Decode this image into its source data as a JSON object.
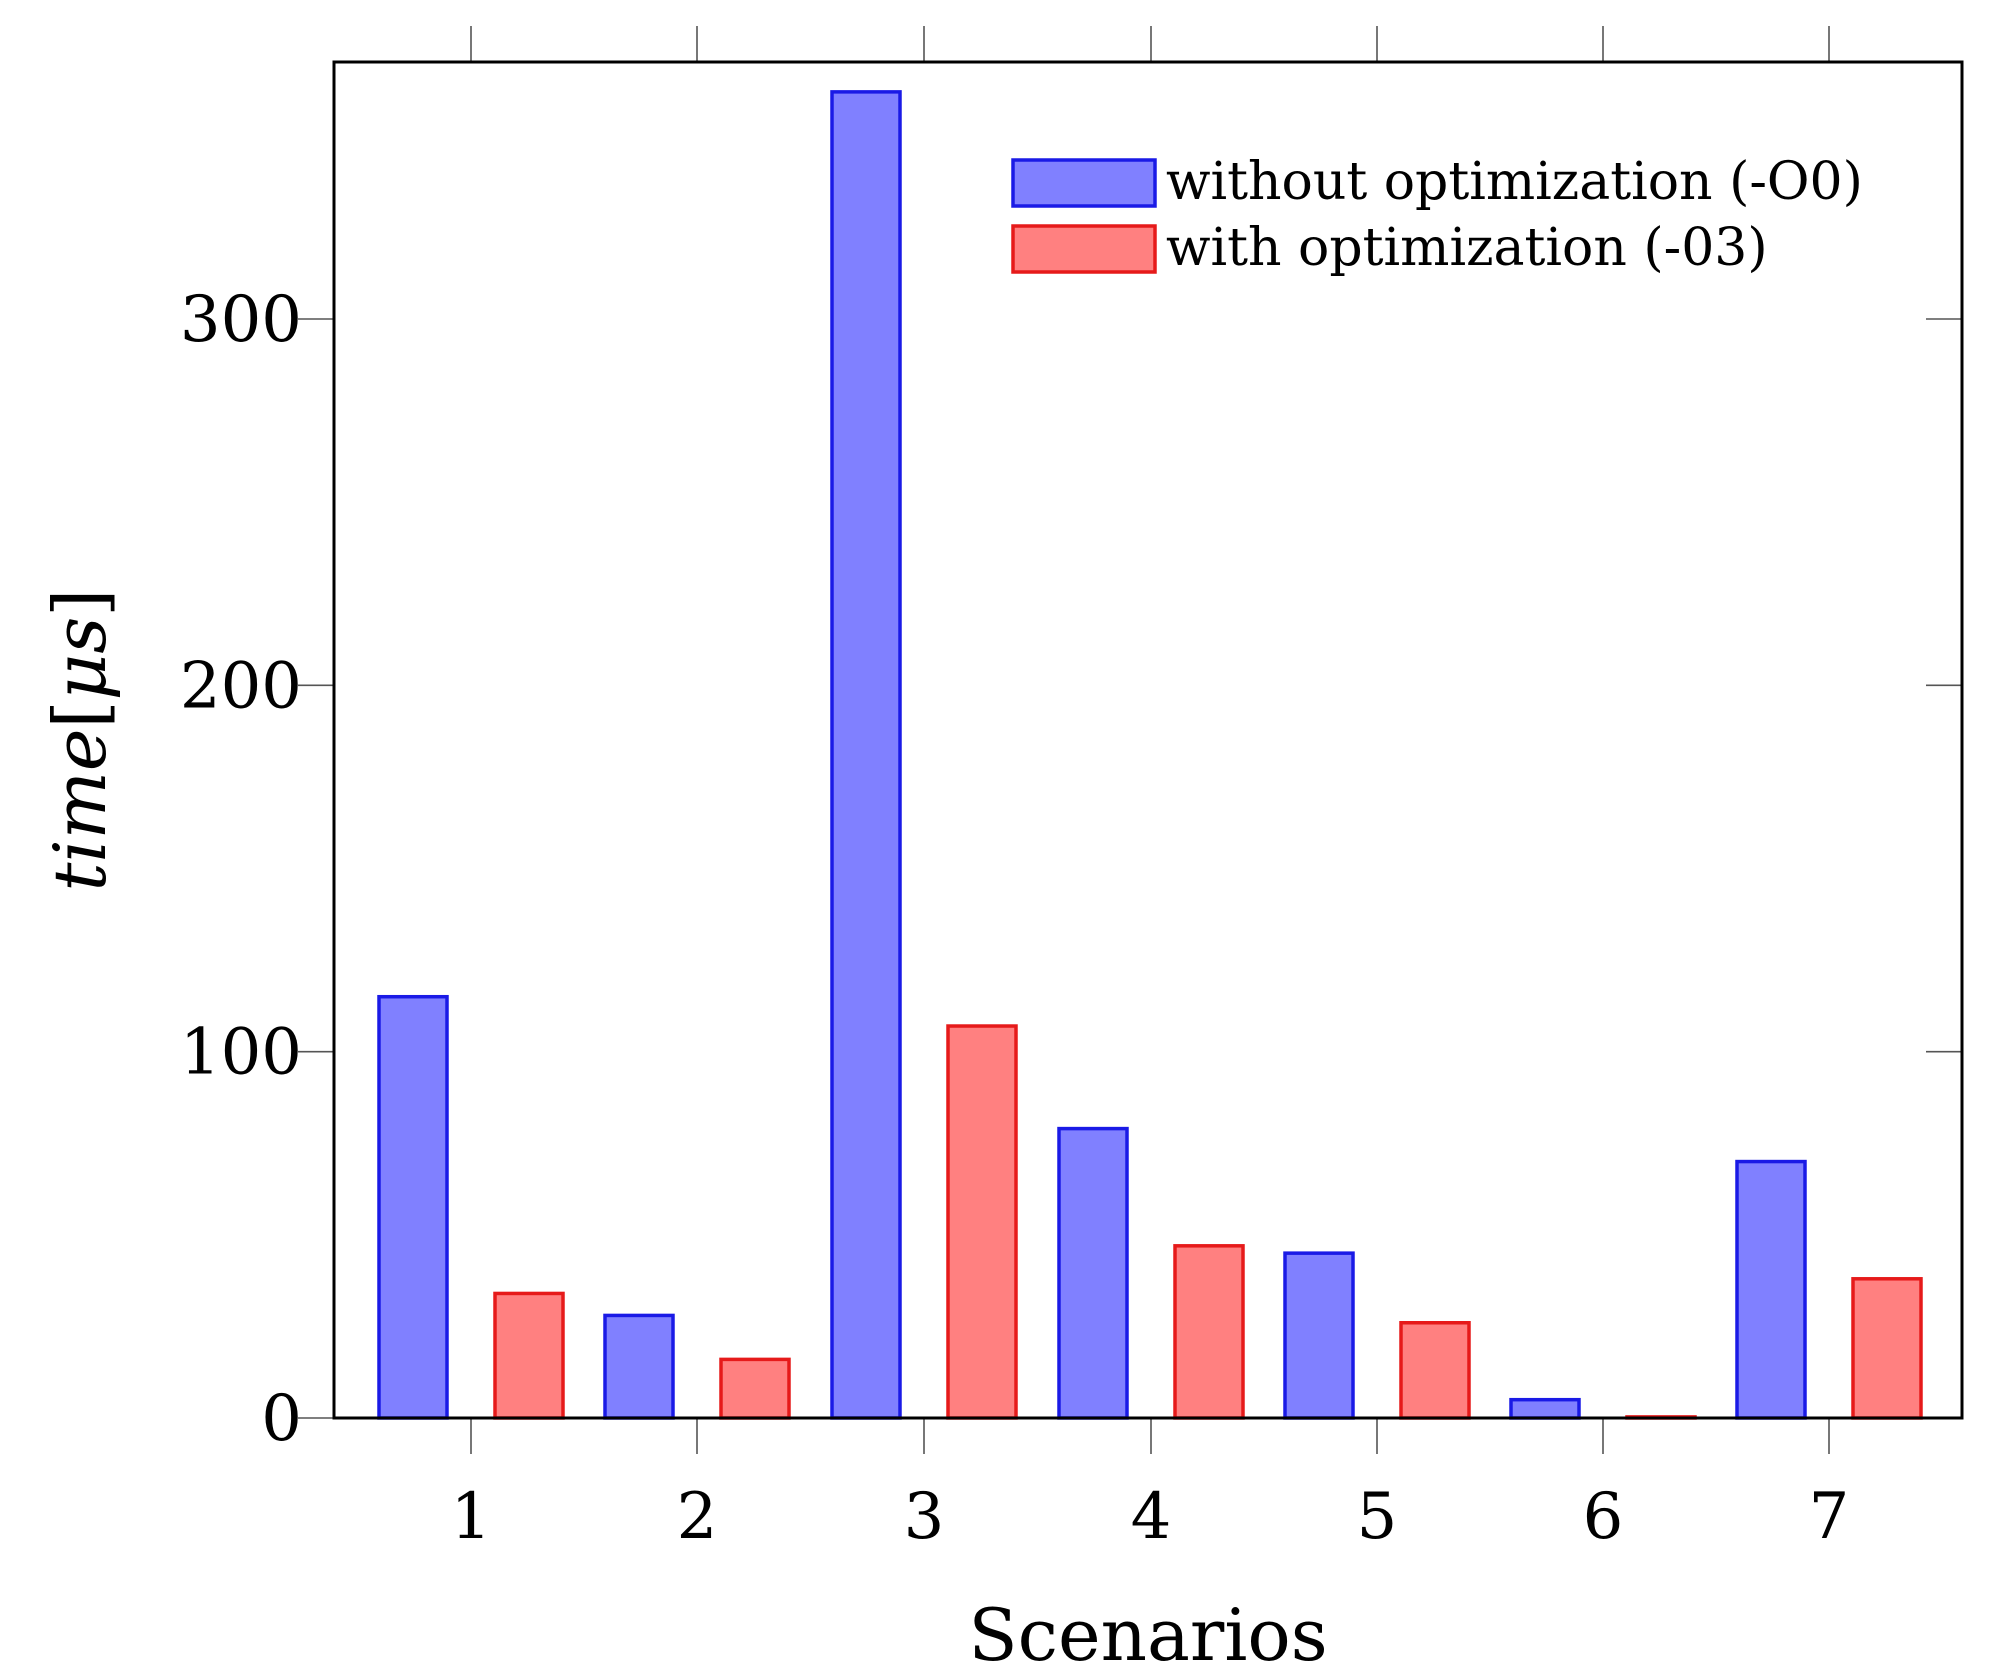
{
  "chart_data": {
    "type": "bar",
    "title": "",
    "xlabel": "Scenarios",
    "ylabel_main": "time",
    "ylabel_bracket_open": "[",
    "ylabel_unit": "μs",
    "ylabel_bracket_close": "]",
    "categories": [
      "1",
      "2",
      "3",
      "4",
      "5",
      "6",
      "7"
    ],
    "ylim": [
      0,
      360
    ],
    "yticks": [
      0,
      100,
      200,
      300
    ],
    "ytick_labels": [
      "0",
      "100",
      "200",
      "300"
    ],
    "grid": false,
    "legend_position": "top-right",
    "series": [
      {
        "name": "without optimization (-O0)",
        "fill": "#8080ff",
        "stroke": "#1a1ae6",
        "values": [
          115,
          28,
          362,
          79,
          45,
          5,
          70
        ]
      },
      {
        "name": "with optimization (-03)",
        "fill": "#ff8080",
        "stroke": "#e61a1a",
        "values": [
          34,
          16,
          107,
          47,
          26,
          0.3,
          38
        ]
      }
    ]
  }
}
